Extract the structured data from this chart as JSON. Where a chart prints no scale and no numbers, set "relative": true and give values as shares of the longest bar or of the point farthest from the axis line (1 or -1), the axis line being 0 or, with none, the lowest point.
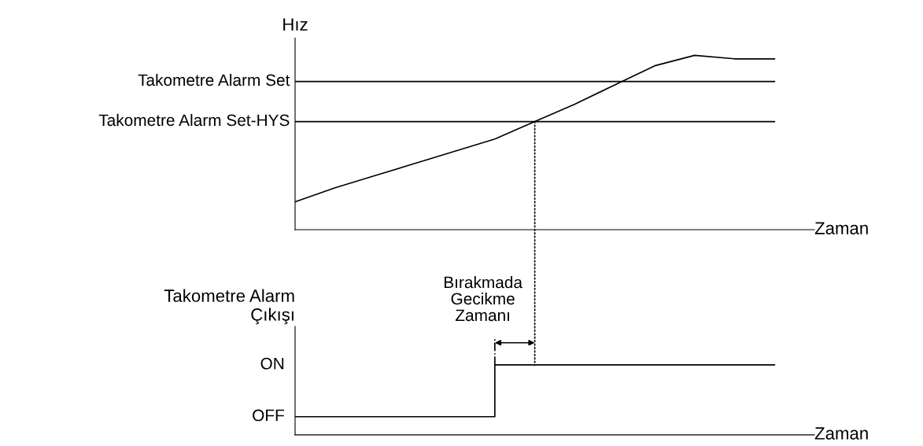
{
  "chart_data": [
    {
      "type": "line",
      "relative": true,
      "ylabel": "Hız",
      "xlabel": "Zaman",
      "categories": [
        null,
        null,
        null,
        null,
        null,
        null,
        null,
        null,
        null,
        null,
        null,
        null,
        null
      ],
      "series": [
        {
          "color": "#000000",
          "values": [
            0.16,
            0.24,
            0.31,
            0.38,
            0.45,
            0.52,
            0.62,
            0.72,
            0.83,
            0.94,
            1.0,
            0.98,
            0.98
          ]
        }
      ],
      "ref_lines": [
        {
          "axis": "y",
          "value": 0.85,
          "label": "Takometre Alarm Set",
          "color": "#000000"
        },
        {
          "axis": "y",
          "value": 0.62,
          "label": "Takometre Alarm Set-HYS",
          "color": "#000000"
        }
      ]
    },
    {
      "type": "step",
      "relative": true,
      "ylabel": "Takometre Alarm\nÇıkışı",
      "xlabel": "Zaman",
      "categories": [
        null,
        null,
        null,
        null,
        null,
        null,
        null,
        null,
        null,
        null,
        null,
        null,
        null
      ],
      "series": [
        {
          "color": "#000000",
          "values": [
            0.26,
            0.26,
            0.26,
            0.26,
            0.26,
            1,
            1,
            1,
            1,
            1,
            1,
            1,
            1
          ]
        }
      ],
      "annotations": [
        "Bırakmada\nGecikme\nZamanı",
        "ON",
        "OFF"
      ]
    }
  ]
}
